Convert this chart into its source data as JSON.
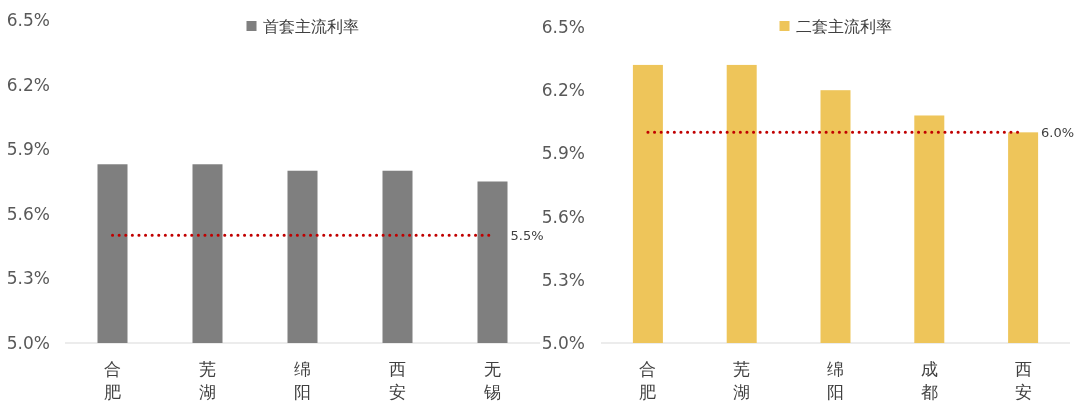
{
  "chart_data": [
    {
      "type": "bar",
      "categories": [
        "合肥",
        "芜湖",
        "绵阳",
        "西安",
        "无锡"
      ],
      "series": [
        {
          "name": "首套主流利率",
          "color": "#7f7f7f",
          "values": [
            5.83,
            5.83,
            5.8,
            5.8,
            5.75
          ]
        }
      ],
      "ylim": [
        5.0,
        6.5
      ],
      "yticks": [
        {
          "value": 5.0,
          "label": "5.0%"
        },
        {
          "value": 5.3,
          "label": "5.3%"
        },
        {
          "value": 5.6,
          "label": "5.6%"
        },
        {
          "value": 5.9,
          "label": "5.9%"
        },
        {
          "value": 6.2,
          "label": "6.2%"
        },
        {
          "value": 6.5,
          "label": "6.5%"
        }
      ],
      "ref_lines": [
        {
          "axis": "y",
          "value": 5.5,
          "label": "5.5%",
          "color": "#c00000",
          "line_style": "dotted"
        }
      ],
      "legend": "top"
    },
    {
      "type": "bar",
      "categories": [
        "合肥",
        "芜湖",
        "绵阳",
        "成都",
        "西安"
      ],
      "series": [
        {
          "name": "二套主流利率",
          "color": "#eec55a",
          "values": [
            6.32,
            6.32,
            6.2,
            6.08,
            6.0
          ]
        }
      ],
      "ylim": [
        5.0,
        6.5
      ],
      "yticks": [
        {
          "value": 5.0,
          "label": "5.0%"
        },
        {
          "value": 5.3,
          "label": "5.3%"
        },
        {
          "value": 5.6,
          "label": "5.6%"
        },
        {
          "value": 5.9,
          "label": "5.9%"
        },
        {
          "value": 6.2,
          "label": "6.2%"
        },
        {
          "value": 6.5,
          "label": "6.5%"
        }
      ],
      "ref_lines": [
        {
          "axis": "y",
          "value": 6.0,
          "label": "6.0%",
          "color": "#c00000",
          "line_style": "dotted"
        }
      ],
      "legend": "top"
    }
  ]
}
